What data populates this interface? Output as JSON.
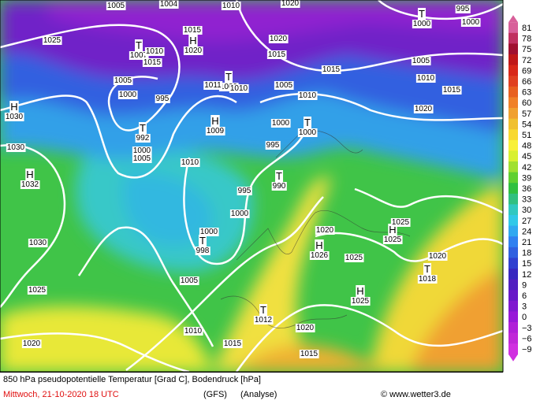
{
  "map": {
    "colorbar": {
      "labels": [
        "81",
        "78",
        "75",
        "72",
        "69",
        "66",
        "63",
        "60",
        "57",
        "54",
        "51",
        "48",
        "45",
        "42",
        "39",
        "36",
        "33",
        "30",
        "27",
        "24",
        "21",
        "18",
        "15",
        "12",
        "9",
        "6",
        "3",
        "0",
        "−3",
        "−6",
        "−9"
      ],
      "colors": [
        "#d8609a",
        "#c03060",
        "#a01030",
        "#c01818",
        "#d82818",
        "#e04020",
        "#e86020",
        "#f08028",
        "#f0a030",
        "#f0c030",
        "#f8d830",
        "#f8f038",
        "#d8f030",
        "#a0e030",
        "#60d030",
        "#30c040",
        "#30c080",
        "#30c8c0",
        "#30c8e8",
        "#30a8f0",
        "#3080f0",
        "#3060e0",
        "#3040d0",
        "#3828c0",
        "#5020c0",
        "#6818c8",
        "#8018d0",
        "#9818d8",
        "#b020d8",
        "#c028d8",
        "#d030e0"
      ]
    },
    "centers": [
      {
        "symbol": "H",
        "pressure": "1030"
      },
      {
        "symbol": "T",
        "pressure": "1007"
      },
      {
        "symbol": "H",
        "pressure": "1020"
      },
      {
        "symbol": "T",
        "pressure": "1009"
      },
      {
        "symbol": "H",
        "pressure": "1009"
      },
      {
        "symbol": "T",
        "pressure": "992"
      },
      {
        "symbol": "H",
        "pressure": "1032"
      },
      {
        "symbol": "T",
        "pressure": "1000"
      },
      {
        "symbol": "T",
        "pressure": "990"
      },
      {
        "symbol": "T",
        "pressure": "998"
      },
      {
        "symbol": "H",
        "pressure": "1026"
      },
      {
        "symbol": "H",
        "pressure": "1025"
      },
      {
        "symbol": "H",
        "pressure": "1025"
      },
      {
        "symbol": "T",
        "pressure": "1018"
      },
      {
        "symbol": "T",
        "pressure": "1012"
      },
      {
        "symbol": "T",
        "pressure": "1000"
      }
    ],
    "isobar_labels": [
      "1005",
      "1004",
      "1010",
      "1020",
      "995",
      "1000",
      "1025",
      "1015",
      "1010",
      "1015",
      "1020",
      "1015",
      "1005",
      "1010",
      "1015",
      "1005",
      "1000",
      "995",
      "1011",
      "1010",
      "1005",
      "1010",
      "1015",
      "1020",
      "1000",
      "995",
      "1000",
      "1005",
      "1030",
      "1010",
      "995",
      "1000",
      "1000",
      "1030",
      "1025",
      "1020",
      "1025",
      "1020",
      "1005",
      "1025",
      "1010",
      "1020",
      "1015",
      "1020",
      "1015"
    ],
    "footer": {
      "title": "850 hPa pseudopotentielle Temperatur [Grad C], Bodendruck [hPa]",
      "date": "Mittwoch, 21-10-2020  18 UTC",
      "model": "(GFS)",
      "run": "(Analyse)",
      "credit": "© www.wetter3.de"
    }
  }
}
